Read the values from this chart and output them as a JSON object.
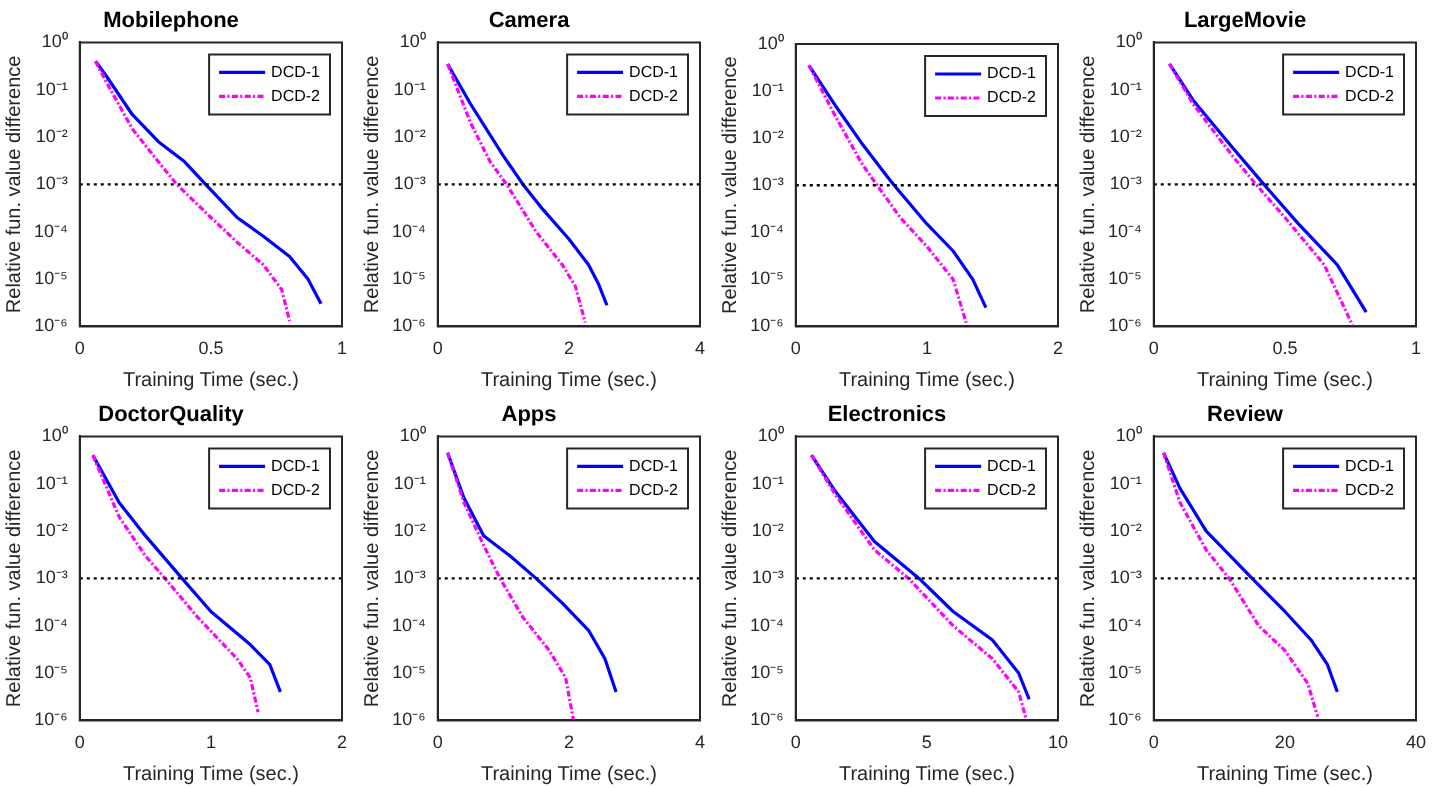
{
  "chart_data": [
    {
      "type": "line",
      "title": "Mobilephone",
      "xlabel": "Training Time (sec.)",
      "ylabel": "Relative fun. value difference",
      "log": "y",
      "grid": false,
      "legend": "top right",
      "xlim": [
        0,
        1
      ],
      "xticks": [
        0,
        0.5,
        1
      ],
      "ylim": [
        1e-06,
        1
      ],
      "yticks": [
        {
          "value": 1e-06,
          "label": "10⁻⁶"
        },
        {
          "value": 1e-05,
          "label": "10⁻⁵"
        },
        {
          "value": 0.0001,
          "label": "10⁻⁴"
        },
        {
          "value": 0.001,
          "label": "10⁻³"
        },
        {
          "value": 0.01,
          "label": "10⁻²"
        },
        {
          "value": 0.1,
          "label": "10⁻¹"
        },
        {
          "value": 1,
          "label": "10⁰"
        }
      ],
      "ref_lines": [
        {
          "axis": "y",
          "value": 0.001,
          "color": "#000000",
          "line_style": "dotted"
        }
      ],
      "series": [
        {
          "name": "DCD-1",
          "color": "#0000ff",
          "line_style": "solid",
          "x": [
            0.06,
            0.1,
            0.2,
            0.3,
            0.4,
            0.48,
            0.6,
            0.7,
            0.8,
            0.87,
            0.92
          ],
          "values": [
            0.4,
            0.2,
            0.03,
            0.008,
            0.003,
            0.001,
            0.0002,
            8e-05,
            3e-05,
            1e-05,
            3e-06
          ]
        },
        {
          "name": "DCD-2",
          "color": "#ff00ff",
          "line_style": "dashed",
          "x": [
            0.06,
            0.1,
            0.2,
            0.3,
            0.37,
            0.5,
            0.6,
            0.7,
            0.77,
            0.8
          ],
          "values": [
            0.4,
            0.15,
            0.015,
            0.003,
            0.001,
            0.0002,
            6e-05,
            2e-05,
            6e-06,
            1.3e-06
          ]
        }
      ]
    },
    {
      "type": "line",
      "title": "Camera",
      "xlabel": "Training Time (sec.)",
      "ylabel": "Relative fun. value difference",
      "log": "y",
      "grid": false,
      "legend": "top right",
      "xlim": [
        0,
        4
      ],
      "xticks": [
        0,
        2,
        4
      ],
      "ylim": [
        1e-06,
        1
      ],
      "yticks": [
        {
          "value": 1e-06,
          "label": "10⁻⁶"
        },
        {
          "value": 1e-05,
          "label": "10⁻⁵"
        },
        {
          "value": 0.0001,
          "label": "10⁻⁴"
        },
        {
          "value": 0.001,
          "label": "10⁻³"
        },
        {
          "value": 0.01,
          "label": "10⁻²"
        },
        {
          "value": 0.1,
          "label": "10⁻¹"
        },
        {
          "value": 1,
          "label": "10⁰"
        }
      ],
      "ref_lines": [
        {
          "axis": "y",
          "value": 0.001,
          "color": "#000000",
          "line_style": "dotted"
        }
      ],
      "series": [
        {
          "name": "DCD-1",
          "color": "#0000ff",
          "line_style": "solid",
          "x": [
            0.15,
            0.5,
            1,
            1.3,
            1.6,
            2,
            2.3,
            2.45,
            2.58
          ],
          "values": [
            0.35,
            0.05,
            0.004,
            0.001,
            0.0003,
            7e-05,
            2e-05,
            8e-06,
            2.8e-06
          ]
        },
        {
          "name": "DCD-2",
          "color": "#ff00ff",
          "line_style": "dashed",
          "x": [
            0.15,
            0.5,
            0.8,
            1.05,
            1.5,
            1.9,
            2.1,
            2.25
          ],
          "values": [
            0.35,
            0.02,
            0.003,
            0.001,
            0.0001,
            2e-05,
            7e-06,
            1.2e-06
          ]
        }
      ]
    },
    {
      "type": "line",
      "title": null,
      "xlabel": "Training Time (sec.)",
      "ylabel": "Relative fun. value difference",
      "log": "y",
      "grid": false,
      "legend": "top right",
      "xlim": [
        0,
        2
      ],
      "xticks": [
        0,
        1,
        2
      ],
      "ylim": [
        1e-06,
        1
      ],
      "yticks": [
        {
          "value": 1e-06,
          "label": "10⁻⁶"
        },
        {
          "value": 1e-05,
          "label": "10⁻⁵"
        },
        {
          "value": 0.0001,
          "label": "10⁻⁴"
        },
        {
          "value": 0.001,
          "label": "10⁻³"
        },
        {
          "value": 0.01,
          "label": "10⁻²"
        },
        {
          "value": 0.1,
          "label": "10⁻¹"
        },
        {
          "value": 1,
          "label": "10⁰"
        }
      ],
      "ref_lines": [
        {
          "axis": "y",
          "value": 0.001,
          "color": "#000000",
          "line_style": "dotted"
        }
      ],
      "series": [
        {
          "name": "DCD-1",
          "color": "#0000ff",
          "line_style": "solid",
          "x": [
            0.1,
            0.3,
            0.5,
            0.7,
            0.75,
            1,
            1.2,
            1.35,
            1.45
          ],
          "values": [
            0.35,
            0.05,
            0.008,
            0.0015,
            0.001,
            0.00015,
            4e-05,
            1e-05,
            2.5e-06
          ]
        },
        {
          "name": "DCD-2",
          "color": "#ff00ff",
          "line_style": "dashed",
          "x": [
            0.1,
            0.3,
            0.5,
            0.62,
            0.8,
            1,
            1.2,
            1.3
          ],
          "values": [
            0.35,
            0.03,
            0.003,
            0.001,
            0.0002,
            5e-05,
            1e-05,
            1.2e-06
          ]
        }
      ]
    },
    {
      "type": "line",
      "title": "LargeMovie",
      "xlabel": "Training Time (sec.)",
      "ylabel": "Relative fun. value difference",
      "log": "y",
      "grid": false,
      "legend": "top right",
      "xlim": [
        0,
        1
      ],
      "xticks": [
        0,
        0.5,
        1
      ],
      "ylim": [
        1e-06,
        1
      ],
      "yticks": [
        {
          "value": 1e-06,
          "label": "10⁻⁶"
        },
        {
          "value": 1e-05,
          "label": "10⁻⁵"
        },
        {
          "value": 0.0001,
          "label": "10⁻⁴"
        },
        {
          "value": 0.001,
          "label": "10⁻³"
        },
        {
          "value": 0.01,
          "label": "10⁻²"
        },
        {
          "value": 0.1,
          "label": "10⁻¹"
        },
        {
          "value": 1,
          "label": "10⁰"
        }
      ],
      "ref_lines": [
        {
          "axis": "y",
          "value": 0.001,
          "color": "#000000",
          "line_style": "dotted"
        }
      ],
      "series": [
        {
          "name": "DCD-1",
          "color": "#0000ff",
          "line_style": "solid",
          "x": [
            0.06,
            0.15,
            0.3,
            0.42,
            0.55,
            0.7,
            0.81
          ],
          "values": [
            0.35,
            0.06,
            0.006,
            0.001,
            0.00015,
            2e-05,
            2e-06
          ]
        },
        {
          "name": "DCD-2",
          "color": "#ff00ff",
          "line_style": "dashed",
          "x": [
            0.06,
            0.15,
            0.3,
            0.39,
            0.5,
            0.65,
            0.76
          ],
          "values": [
            0.35,
            0.05,
            0.004,
            0.001,
            0.0002,
            2e-05,
            1e-06
          ]
        }
      ]
    },
    {
      "type": "line",
      "title": "DoctorQuality",
      "xlabel": "Training Time (sec.)",
      "ylabel": "Relative fun. value difference",
      "log": "y",
      "grid": false,
      "legend": "top right",
      "xlim": [
        0,
        2
      ],
      "xticks": [
        0,
        1,
        2
      ],
      "ylim": [
        1e-06,
        1
      ],
      "yticks": [
        {
          "value": 1e-06,
          "label": "10⁻⁶"
        },
        {
          "value": 1e-05,
          "label": "10⁻⁵"
        },
        {
          "value": 0.0001,
          "label": "10⁻⁴"
        },
        {
          "value": 0.001,
          "label": "10⁻³"
        },
        {
          "value": 0.01,
          "label": "10⁻²"
        },
        {
          "value": 0.1,
          "label": "10⁻¹"
        },
        {
          "value": 1,
          "label": "10⁰"
        }
      ],
      "ref_lines": [
        {
          "axis": "y",
          "value": 0.001,
          "color": "#000000",
          "line_style": "dotted"
        }
      ],
      "series": [
        {
          "name": "DCD-1",
          "color": "#0000ff",
          "line_style": "solid",
          "x": [
            0.1,
            0.3,
            0.5,
            0.78,
            1,
            1.3,
            1.45,
            1.53
          ],
          "values": [
            0.4,
            0.04,
            0.008,
            0.001,
            0.0002,
            4e-05,
            1.5e-05,
            4e-06
          ]
        },
        {
          "name": "DCD-2",
          "color": "#ff00ff",
          "line_style": "dashed",
          "x": [
            0.1,
            0.3,
            0.5,
            0.65,
            0.9,
            1.2,
            1.3,
            1.36
          ],
          "values": [
            0.4,
            0.02,
            0.003,
            0.001,
            0.00015,
            2e-05,
            8e-06,
            1.5e-06
          ]
        }
      ]
    },
    {
      "type": "line",
      "title": "Apps",
      "xlabel": "Training Time (sec.)",
      "ylabel": "Relative fun. value difference",
      "log": "y",
      "grid": false,
      "legend": "top right",
      "xlim": [
        0,
        4
      ],
      "xticks": [
        0,
        2,
        4
      ],
      "ylim": [
        1e-06,
        1
      ],
      "yticks": [
        {
          "value": 1e-06,
          "label": "10⁻⁶"
        },
        {
          "value": 1e-05,
          "label": "10⁻⁵"
        },
        {
          "value": 0.0001,
          "label": "10⁻⁴"
        },
        {
          "value": 0.001,
          "label": "10⁻³"
        },
        {
          "value": 0.01,
          "label": "10⁻²"
        },
        {
          "value": 0.1,
          "label": "10⁻¹"
        },
        {
          "value": 1,
          "label": "10⁰"
        }
      ],
      "ref_lines": [
        {
          "axis": "y",
          "value": 0.001,
          "color": "#000000",
          "line_style": "dotted"
        }
      ],
      "series": [
        {
          "name": "DCD-1",
          "color": "#0000ff",
          "line_style": "solid",
          "x": [
            0.15,
            0.4,
            0.7,
            1.1,
            1.5,
            1.9,
            2.3,
            2.55,
            2.72
          ],
          "values": [
            0.45,
            0.05,
            0.008,
            0.003,
            0.001,
            0.0003,
            8e-05,
            2e-05,
            4e-06
          ]
        },
        {
          "name": "DCD-2",
          "color": "#ff00ff",
          "line_style": "dashed",
          "x": [
            0.15,
            0.4,
            0.7,
            0.95,
            1.3,
            1.7,
            1.95,
            2.07
          ],
          "values": [
            0.45,
            0.04,
            0.005,
            0.001,
            0.00015,
            3e-05,
            8e-06,
            1e-06
          ]
        }
      ]
    },
    {
      "type": "line",
      "title": "Electronics",
      "xlabel": "Training Time (sec.)",
      "ylabel": "Relative fun. value difference",
      "log": "y",
      "grid": false,
      "legend": "top right",
      "xlim": [
        0,
        10
      ],
      "xticks": [
        0,
        5,
        10
      ],
      "ylim": [
        1e-06,
        1
      ],
      "yticks": [
        {
          "value": 1e-06,
          "label": "10⁻⁶"
        },
        {
          "value": 1e-05,
          "label": "10⁻⁵"
        },
        {
          "value": 0.0001,
          "label": "10⁻⁴"
        },
        {
          "value": 0.001,
          "label": "10⁻³"
        },
        {
          "value": 0.01,
          "label": "10⁻²"
        },
        {
          "value": 0.1,
          "label": "10⁻¹"
        },
        {
          "value": 1,
          "label": "10⁰"
        }
      ],
      "ref_lines": [
        {
          "axis": "y",
          "value": 0.001,
          "color": "#000000",
          "line_style": "dotted"
        }
      ],
      "series": [
        {
          "name": "DCD-1",
          "color": "#0000ff",
          "line_style": "solid",
          "x": [
            0.6,
            1.5,
            3,
            4.7,
            6,
            7.5,
            8.5,
            8.9
          ],
          "values": [
            0.4,
            0.07,
            0.006,
            0.001,
            0.0002,
            5e-05,
            1e-05,
            2.8e-06
          ]
        },
        {
          "name": "DCD-2",
          "color": "#ff00ff",
          "line_style": "dashed",
          "x": [
            0.6,
            1.5,
            3,
            4.3,
            6,
            7.5,
            8.5,
            8.8
          ],
          "values": [
            0.4,
            0.06,
            0.004,
            0.001,
            0.0001,
            2e-05,
            4e-06,
            1e-06
          ]
        }
      ]
    },
    {
      "type": "line",
      "title": "Review",
      "xlabel": "Training Time (sec.)",
      "ylabel": "Relative fun. value difference",
      "log": "y",
      "grid": false,
      "legend": "top right",
      "xlim": [
        0,
        40
      ],
      "xticks": [
        0,
        20,
        40
      ],
      "ylim": [
        1e-06,
        1
      ],
      "yticks": [
        {
          "value": 1e-06,
          "label": "10⁻⁶"
        },
        {
          "value": 1e-05,
          "label": "10⁻⁵"
        },
        {
          "value": 0.0001,
          "label": "10⁻⁴"
        },
        {
          "value": 0.001,
          "label": "10⁻³"
        },
        {
          "value": 0.01,
          "label": "10⁻²"
        },
        {
          "value": 0.1,
          "label": "10⁻¹"
        },
        {
          "value": 1,
          "label": "10⁰"
        }
      ],
      "ref_lines": [
        {
          "axis": "y",
          "value": 0.001,
          "color": "#000000",
          "line_style": "dotted"
        }
      ],
      "series": [
        {
          "name": "DCD-1",
          "color": "#0000ff",
          "line_style": "solid",
          "x": [
            1.5,
            4,
            8,
            15,
            20,
            24,
            26.5,
            28
          ],
          "values": [
            0.45,
            0.08,
            0.01,
            0.001,
            0.0002,
            5e-05,
            1.5e-05,
            4e-06
          ]
        },
        {
          "name": "DCD-2",
          "color": "#ff00ff",
          "line_style": "dashed",
          "x": [
            1.5,
            4,
            8,
            11.5,
            16,
            20,
            23.5,
            25
          ],
          "values": [
            0.45,
            0.04,
            0.004,
            0.001,
            0.0001,
            3e-05,
            6e-06,
            1.2e-06
          ]
        }
      ]
    }
  ]
}
